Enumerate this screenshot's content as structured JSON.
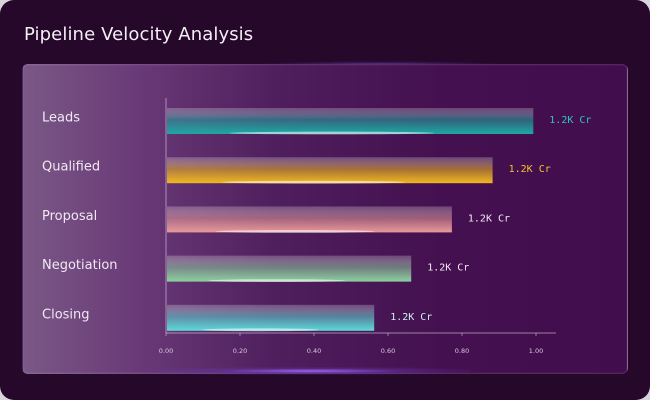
{
  "title": "Pipeline Velocity Analysis",
  "chart_data": {
    "type": "bar",
    "orientation": "horizontal",
    "title": "Pipeline Velocity Analysis",
    "categories": [
      "Leads",
      "Qualified",
      "Proposal",
      "Negotiation",
      "Closing"
    ],
    "values": [
      0.99,
      0.88,
      0.77,
      0.66,
      0.56
    ],
    "value_labels": [
      "1.2K Cr",
      "1.2K Cr",
      "1.2K Cr",
      "1.2K Cr",
      "1.2K Cr"
    ],
    "xlim": [
      0,
      1.0
    ],
    "x_ticks": [
      "0.00",
      "0.20",
      "0.40",
      "0.60",
      "0.80",
      "1.00"
    ],
    "grid": false,
    "bar_colors": [
      "#1fa7a3",
      "#f0b820",
      "#e89a9a",
      "#8dd0a0",
      "#5ed9d9"
    ],
    "label_colors": [
      "#2fc4c0",
      "#f4c430",
      "#f1e9f3",
      "#f1e9f3",
      "#cfeff5"
    ]
  }
}
